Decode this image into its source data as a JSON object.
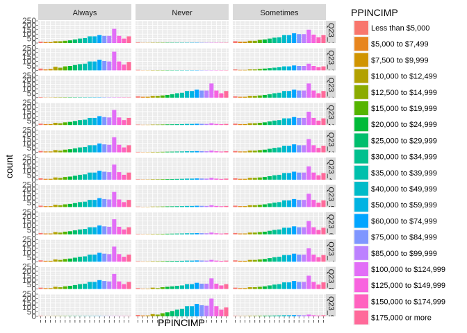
{
  "chart_data": {
    "type": "bar",
    "xlabel": "PPINCIMP",
    "ylabel": "count",
    "ylim": [
      0,
      250
    ],
    "y_ticks": [
      0,
      50,
      100,
      150,
      200,
      250
    ],
    "grid": true,
    "legend_position": "right",
    "column_facets": [
      "Always",
      "Never",
      "Sometimes"
    ],
    "row_facets": [
      "Q23_1",
      "Q23_1",
      "Q23_1",
      "Q23_2",
      "Q23_3",
      "Q23_4",
      "Q23_5",
      "Q23_6",
      "Q23_7",
      "Q23_8",
      "Q23_9"
    ],
    "legend": {
      "title": "PPINCIMP",
      "categories": [
        "Less than $5,000",
        "$5,000 to $7,499",
        "$7,500 to $9,999",
        "$10,000 to $12,499",
        "$12,500 to $14,999",
        "$15,000 to $19,999",
        "$20,000 to $24,999",
        "$25,000 to $29,999",
        "$30,000 to $34,999",
        "$35,000 to $39,999",
        "$40,000 to $49,999",
        "$50,000 to $59,999",
        "$60,000 to $74,999",
        "$75,000 to $84,999",
        "$85,000 to $99,999",
        "$100,000 to $124,999",
        "$125,000 to $149,999",
        "$150,000 to $174,999",
        "$175,000 or more"
      ],
      "colors": [
        "#F8766D",
        "#E7851E",
        "#D09400",
        "#B2A100",
        "#8BAB00",
        "#55B400",
        "#00BA38",
        "#00BE6C",
        "#00C08E",
        "#00C0AC",
        "#00BBC8",
        "#00B3E2",
        "#00A5FF",
        "#7F96FF",
        "#BC81FF",
        "#E26EF7",
        "#F863DF",
        "#FF62BF",
        "#FF6A9A"
      ]
    },
    "panels": [
      {
        "row": "Q23_1",
        "values": {
          "Always": [
            15,
            10,
            10,
            20,
            20,
            25,
            30,
            40,
            50,
            55,
            75,
            75,
            90,
            80,
            80,
            160,
            80,
            50,
            75
          ],
          "Never": [
            5,
            2,
            2,
            3,
            3,
            3,
            3,
            3,
            3,
            3,
            3,
            3,
            3,
            3,
            3,
            3,
            3,
            3,
            3
          ],
          "Sometimes": [
            20,
            15,
            15,
            25,
            25,
            35,
            40,
            50,
            60,
            65,
            90,
            90,
            110,
            100,
            100,
            150,
            95,
            65,
            90
          ]
        }
      },
      {
        "row": "Q23_1",
        "values": {
          "Always": [
            20,
            10,
            15,
            40,
            30,
            45,
            50,
            60,
            70,
            75,
            100,
            100,
            120,
            105,
            100,
            210,
            100,
            65,
            95
          ],
          "Never": [
            5,
            2,
            2,
            3,
            3,
            3,
            3,
            3,
            3,
            3,
            3,
            3,
            3,
            3,
            3,
            3,
            3,
            3,
            3
          ],
          "Sometimes": [
            10,
            5,
            5,
            10,
            10,
            15,
            20,
            25,
            30,
            35,
            45,
            45,
            55,
            50,
            50,
            75,
            50,
            35,
            45
          ]
        }
      },
      {
        "row": "Q23_1",
        "values": {
          "Always": [
            5,
            2,
            2,
            3,
            3,
            3,
            3,
            3,
            3,
            3,
            3,
            3,
            3,
            3,
            3,
            3,
            3,
            3,
            3
          ],
          "Never": [
            15,
            10,
            10,
            20,
            20,
            25,
            30,
            40,
            50,
            55,
            75,
            75,
            90,
            80,
            80,
            160,
            80,
            50,
            75
          ],
          "Sometimes": [
            15,
            10,
            10,
            20,
            20,
            25,
            30,
            40,
            50,
            55,
            75,
            75,
            90,
            80,
            80,
            160,
            80,
            50,
            75
          ]
        }
      },
      {
        "row": "Q23_2",
        "values": {
          "Always": [
            15,
            10,
            10,
            25,
            20,
            30,
            35,
            45,
            55,
            60,
            80,
            80,
            100,
            90,
            85,
            170,
            85,
            55,
            80
          ],
          "Never": [
            5,
            3,
            3,
            5,
            5,
            6,
            7,
            8,
            9,
            10,
            12,
            12,
            14,
            13,
            12,
            20,
            12,
            9,
            12
          ],
          "Sometimes": [
            15,
            10,
            10,
            20,
            20,
            25,
            30,
            40,
            50,
            55,
            75,
            75,
            90,
            80,
            80,
            150,
            80,
            50,
            75
          ]
        }
      },
      {
        "row": "Q23_3",
        "values": {
          "Always": [
            15,
            10,
            10,
            25,
            20,
            30,
            35,
            45,
            55,
            60,
            80,
            80,
            100,
            90,
            85,
            170,
            85,
            55,
            80
          ],
          "Never": [
            5,
            3,
            3,
            5,
            5,
            6,
            7,
            8,
            9,
            10,
            12,
            12,
            14,
            13,
            12,
            20,
            12,
            9,
            12
          ],
          "Sometimes": [
            15,
            10,
            10,
            20,
            20,
            25,
            30,
            40,
            50,
            55,
            75,
            75,
            90,
            80,
            80,
            150,
            80,
            50,
            75
          ]
        }
      },
      {
        "row": "Q23_4",
        "values": {
          "Always": [
            15,
            10,
            10,
            25,
            20,
            30,
            35,
            45,
            55,
            60,
            80,
            80,
            100,
            90,
            85,
            170,
            85,
            55,
            80
          ],
          "Never": [
            5,
            3,
            3,
            5,
            5,
            6,
            7,
            8,
            9,
            10,
            12,
            12,
            14,
            13,
            12,
            20,
            12,
            9,
            12
          ],
          "Sometimes": [
            15,
            10,
            10,
            20,
            20,
            25,
            30,
            40,
            50,
            55,
            75,
            75,
            90,
            80,
            80,
            150,
            80,
            50,
            75
          ]
        }
      },
      {
        "row": "Q23_5",
        "values": {
          "Always": [
            15,
            10,
            10,
            25,
            20,
            30,
            35,
            45,
            55,
            60,
            80,
            80,
            100,
            90,
            85,
            170,
            85,
            55,
            80
          ],
          "Never": [
            5,
            3,
            3,
            5,
            5,
            6,
            7,
            8,
            9,
            10,
            12,
            12,
            14,
            13,
            12,
            20,
            12,
            9,
            12
          ],
          "Sometimes": [
            15,
            10,
            10,
            20,
            20,
            25,
            30,
            40,
            50,
            55,
            75,
            75,
            90,
            80,
            80,
            150,
            80,
            50,
            75
          ]
        }
      },
      {
        "row": "Q23_6",
        "values": {
          "Always": [
            15,
            10,
            10,
            25,
            20,
            30,
            35,
            45,
            55,
            60,
            80,
            80,
            100,
            90,
            85,
            170,
            85,
            55,
            80
          ],
          "Never": [
            5,
            3,
            3,
            5,
            5,
            6,
            7,
            8,
            9,
            10,
            12,
            12,
            14,
            13,
            12,
            20,
            12,
            9,
            12
          ],
          "Sometimes": [
            15,
            10,
            10,
            20,
            20,
            25,
            30,
            40,
            50,
            55,
            75,
            75,
            90,
            80,
            80,
            150,
            80,
            50,
            75
          ]
        }
      },
      {
        "row": "Q23_7",
        "values": {
          "Always": [
            15,
            10,
            10,
            25,
            20,
            30,
            35,
            45,
            55,
            60,
            80,
            80,
            100,
            90,
            85,
            170,
            85,
            55,
            80
          ],
          "Never": [
            5,
            3,
            3,
            5,
            5,
            6,
            7,
            8,
            9,
            10,
            12,
            12,
            14,
            13,
            12,
            20,
            12,
            9,
            12
          ],
          "Sometimes": [
            15,
            10,
            10,
            20,
            20,
            25,
            30,
            40,
            50,
            55,
            75,
            75,
            90,
            80,
            80,
            150,
            80,
            50,
            75
          ]
        }
      },
      {
        "row": "Q23_8",
        "values": {
          "Always": [
            15,
            10,
            10,
            25,
            20,
            30,
            35,
            45,
            55,
            60,
            80,
            80,
            100,
            90,
            85,
            170,
            85,
            55,
            80
          ],
          "Never": [
            10,
            5,
            5,
            15,
            10,
            20,
            25,
            30,
            35,
            40,
            55,
            55,
            70,
            60,
            60,
            120,
            60,
            40,
            55
          ],
          "Sometimes": [
            15,
            10,
            10,
            20,
            20,
            25,
            30,
            40,
            50,
            55,
            75,
            75,
            90,
            80,
            80,
            150,
            80,
            50,
            75
          ]
        }
      },
      {
        "row": "Q23_9",
        "values": {
          "Always": [
            5,
            2,
            2,
            3,
            3,
            3,
            3,
            3,
            3,
            3,
            3,
            3,
            3,
            3,
            3,
            3,
            3,
            3,
            3
          ],
          "Never": [
            15,
            10,
            10,
            25,
            20,
            35,
            45,
            60,
            75,
            85,
            115,
            115,
            140,
            125,
            120,
            200,
            115,
            75,
            100
          ],
          "Sometimes": [
            5,
            3,
            3,
            5,
            5,
            6,
            7,
            8,
            9,
            10,
            12,
            12,
            14,
            13,
            12,
            20,
            12,
            9,
            12
          ]
        }
      }
    ]
  }
}
